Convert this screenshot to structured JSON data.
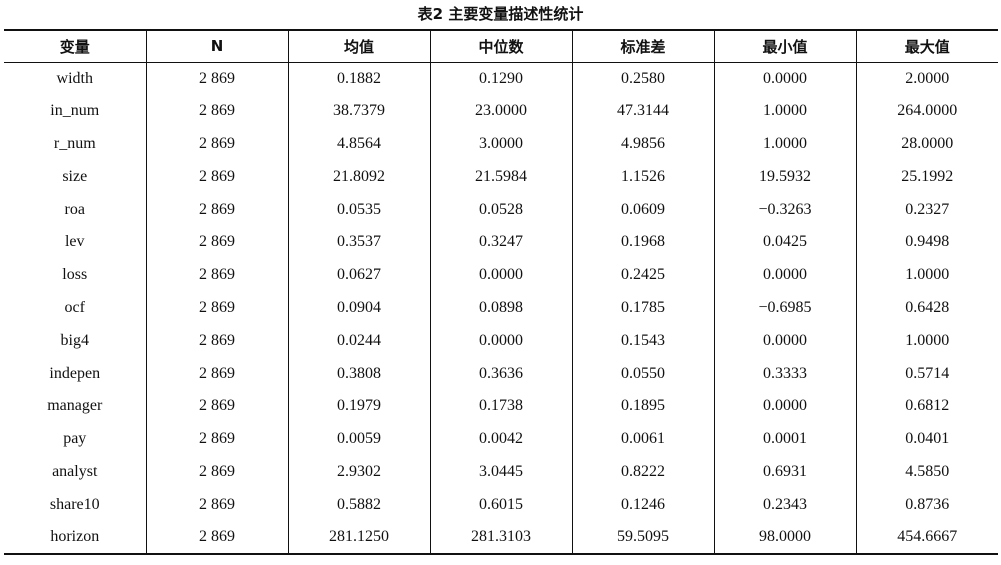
{
  "caption": "表2  主要变量描述性统计",
  "table": {
    "headers": [
      "变量",
      "N",
      "均值",
      "中位数",
      "标准差",
      "最小值",
      "最大值"
    ],
    "rows": [
      [
        "width",
        "2 869",
        "0.1882",
        "0.1290",
        "0.2580",
        "0.0000",
        "2.0000"
      ],
      [
        "in_num",
        "2 869",
        "38.7379",
        "23.0000",
        "47.3144",
        "1.0000",
        "264.0000"
      ],
      [
        "r_num",
        "2 869",
        "4.8564",
        "3.0000",
        "4.9856",
        "1.0000",
        "28.0000"
      ],
      [
        "size",
        "2 869",
        "21.8092",
        "21.5984",
        "1.1526",
        "19.5932",
        "25.1992"
      ],
      [
        "roa",
        "2 869",
        "0.0535",
        "0.0528",
        "0.0609",
        "−0.3263",
        "0.2327"
      ],
      [
        "lev",
        "2 869",
        "0.3537",
        "0.3247",
        "0.1968",
        "0.0425",
        "0.9498"
      ],
      [
        "loss",
        "2 869",
        "0.0627",
        "0.0000",
        "0.2425",
        "0.0000",
        "1.0000"
      ],
      [
        "ocf",
        "2 869",
        "0.0904",
        "0.0898",
        "0.1785",
        "−0.6985",
        "0.6428"
      ],
      [
        "big4",
        "2 869",
        "0.0244",
        "0.0000",
        "0.1543",
        "0.0000",
        "1.0000"
      ],
      [
        "indepen",
        "2 869",
        "0.3808",
        "0.3636",
        "0.0550",
        "0.3333",
        "0.5714"
      ],
      [
        "manager",
        "2 869",
        "0.1979",
        "0.1738",
        "0.1895",
        "0.0000",
        "0.6812"
      ],
      [
        "pay",
        "2 869",
        "0.0059",
        "0.0042",
        "0.0061",
        "0.0001",
        "0.0401"
      ],
      [
        "analyst",
        "2 869",
        "2.9302",
        "3.0445",
        "0.8222",
        "0.6931",
        "4.5850"
      ],
      [
        "share10",
        "2 869",
        "0.5882",
        "0.6015",
        "0.1246",
        "0.2343",
        "0.8736"
      ],
      [
        "horizon",
        "2 869",
        "281.1250",
        "281.3103",
        "59.5095",
        "98.0000",
        "454.6667"
      ]
    ]
  }
}
